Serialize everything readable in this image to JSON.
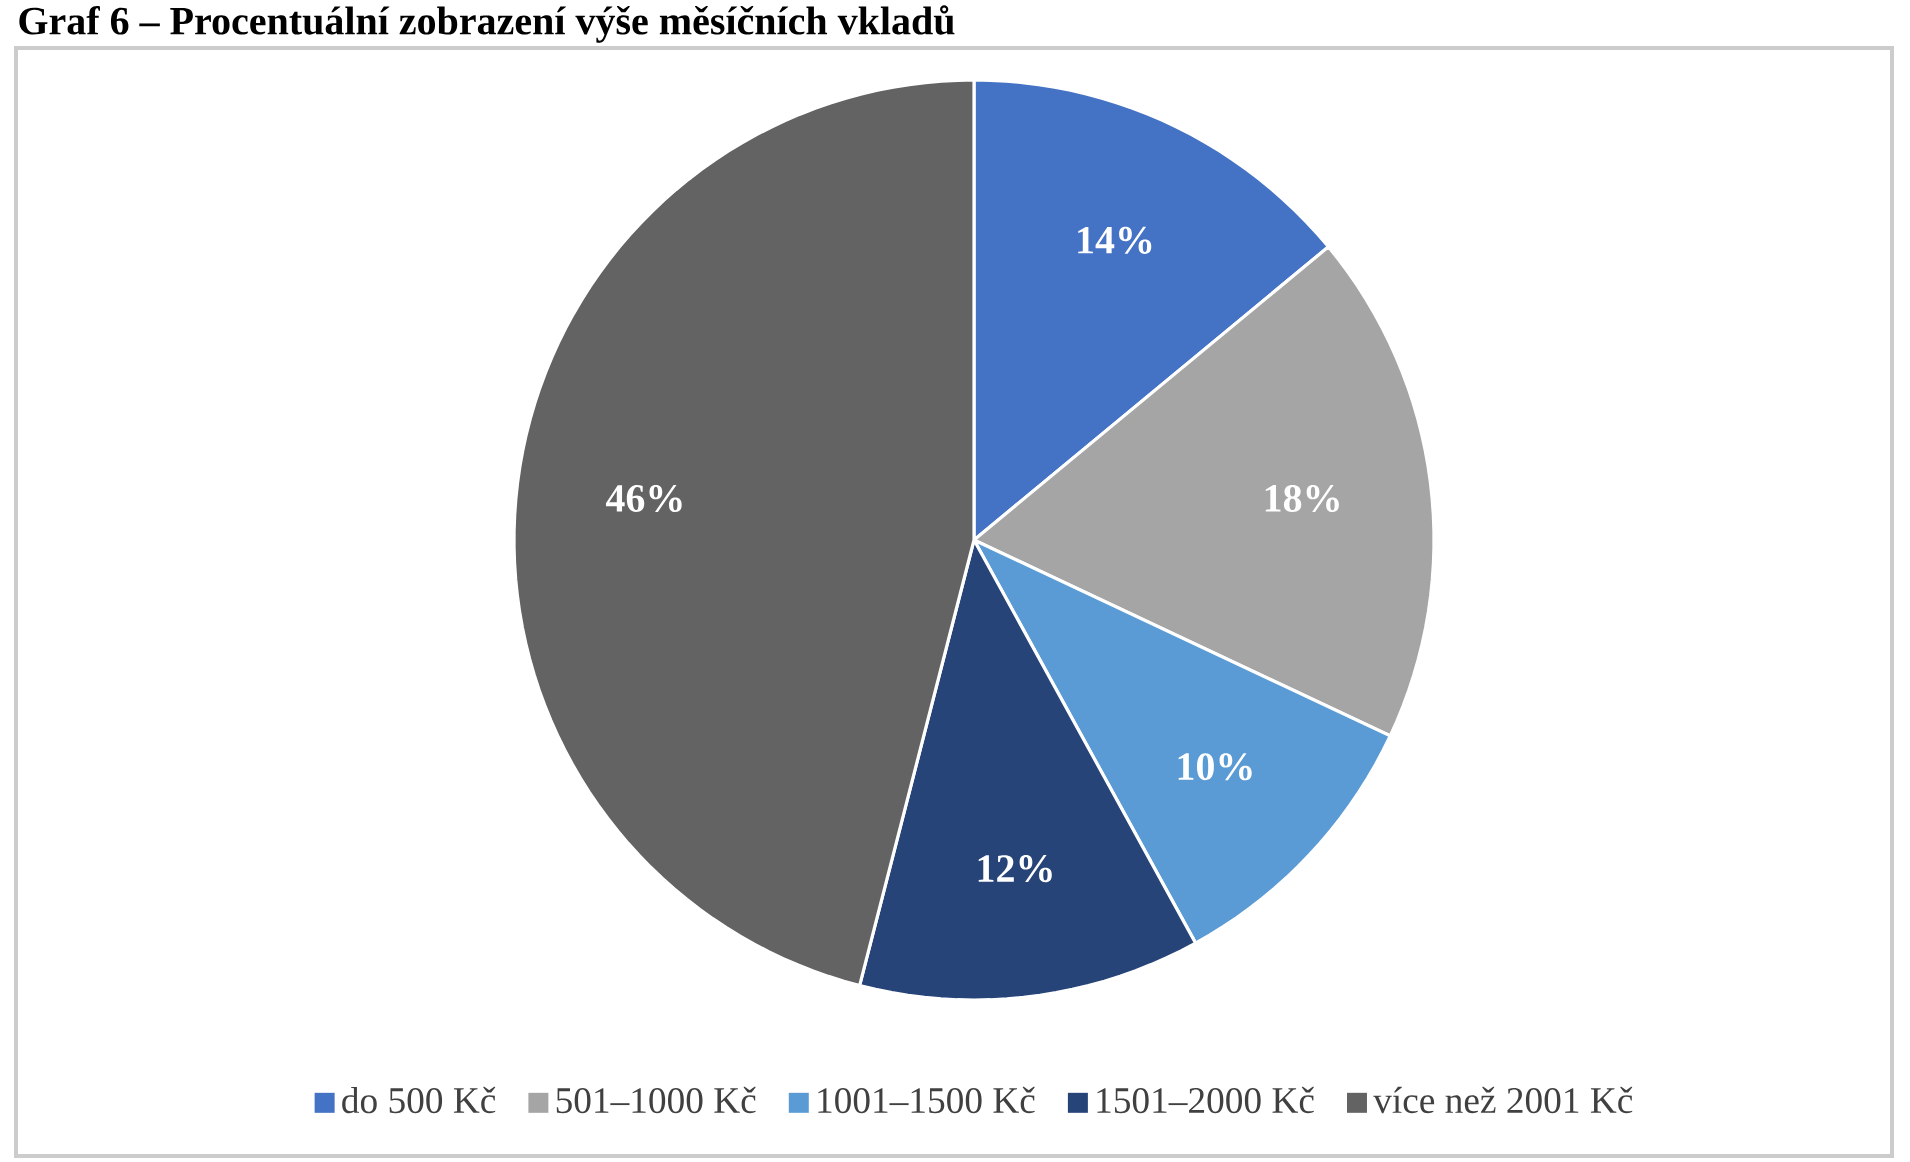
{
  "chart_data": {
    "type": "pie",
    "title": "Graf 6 – Procentuální zobrazení výše měsíčních vkladů",
    "categories": [
      "do 500 Kč",
      "501–1000 Kč",
      "1001–1500 Kč",
      "1501–2000 Kč",
      "více než 2001 Kč"
    ],
    "values": [
      14,
      18,
      10,
      12,
      46
    ],
    "colors": [
      "#4472c4",
      "#a5a5a5",
      "#5b9bd5",
      "#264478",
      "#636363"
    ],
    "value_labels": [
      "14%",
      "18%",
      "10%",
      "12%",
      "46%"
    ],
    "legend": "bottom"
  }
}
